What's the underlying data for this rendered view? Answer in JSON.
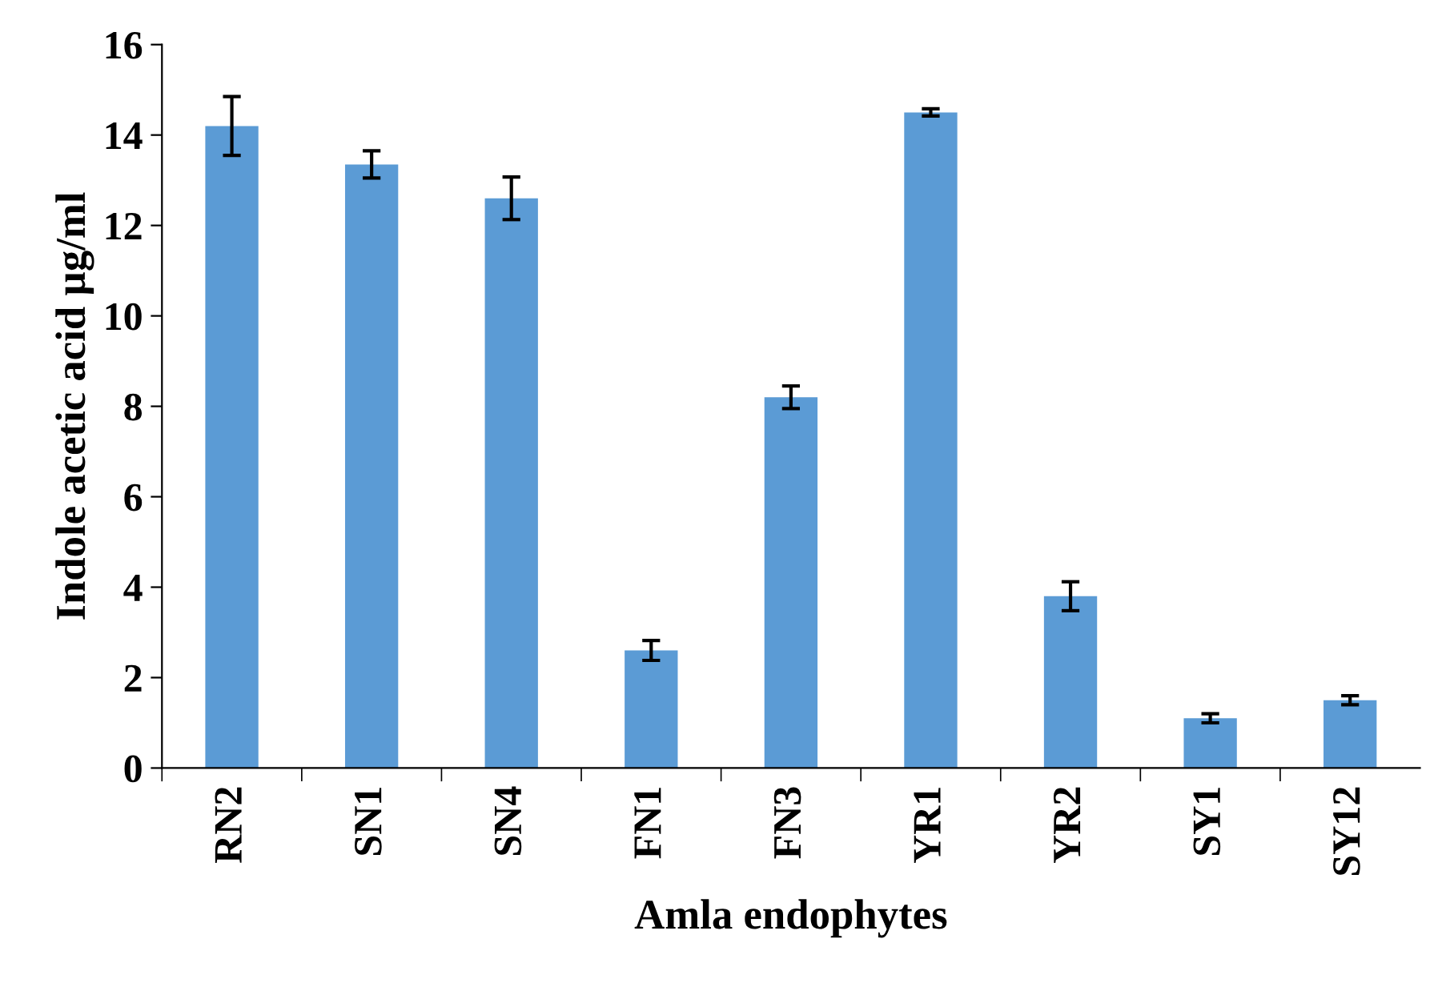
{
  "chart_data": {
    "type": "bar",
    "xlabel": "Amla endophytes",
    "ylabel": "Indole acetic acid µg/ml",
    "categories": [
      "RN2",
      "SN1",
      "SN4",
      "FN1",
      "FN3",
      "YR1",
      "YR2",
      "SY1",
      "SY12"
    ],
    "values": [
      14.2,
      13.35,
      12.6,
      2.6,
      8.2,
      14.5,
      3.8,
      1.1,
      1.5
    ],
    "errors": [
      0.65,
      0.3,
      0.47,
      0.22,
      0.25,
      0.08,
      0.32,
      0.1,
      0.1
    ],
    "color": "#5b9bd5",
    "ylim": [
      0,
      16
    ],
    "yticks": [
      0,
      2,
      4,
      6,
      8,
      10,
      12,
      14,
      16
    ],
    "grid": false,
    "legend": false
  }
}
